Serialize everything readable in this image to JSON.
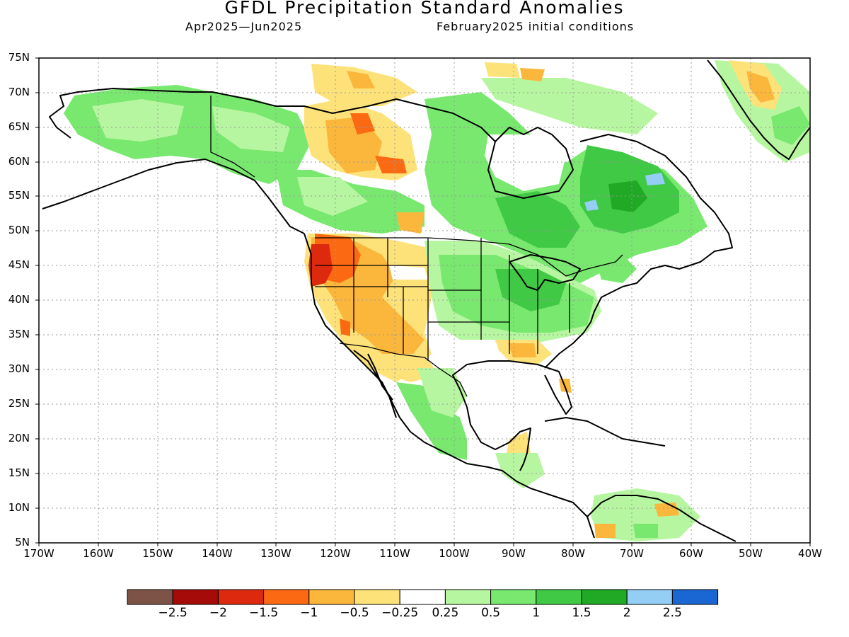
{
  "title": "GFDL Precipitation Standard Anomalies",
  "subtitle_left": "Apr2025—Jun2025",
  "subtitle_right": "February2025 initial conditions",
  "lat_labels": [
    "75N",
    "70N",
    "65N",
    "60N",
    "55N",
    "50N",
    "45N",
    "40N",
    "35N",
    "30N",
    "25N",
    "20N",
    "15N",
    "10N",
    "5N"
  ],
  "lon_labels": [
    "170W",
    "160W",
    "150W",
    "140W",
    "130W",
    "120W",
    "110W",
    "100W",
    "90W",
    "80W",
    "70W",
    "60W",
    "50W",
    "40W"
  ],
  "colorbar": {
    "colors": [
      "#7e5347",
      "#a50b08",
      "#dd2a0e",
      "#fb6a12",
      "#fbb63c",
      "#fde27a",
      "#ffffff",
      "#b7f6a0",
      "#78e86f",
      "#3fc945",
      "#21a825",
      "#94cef5",
      "#1a66d2"
    ],
    "labels": [
      "−2.5",
      "−2",
      "−1.5",
      "−1",
      "−0.5",
      "−0.25",
      "0.25",
      "0.5",
      "1",
      "1.5",
      "2",
      "2.5"
    ]
  },
  "colors": {
    "frame": "#000000",
    "grid": "#999999",
    "coast": "#000000"
  }
}
